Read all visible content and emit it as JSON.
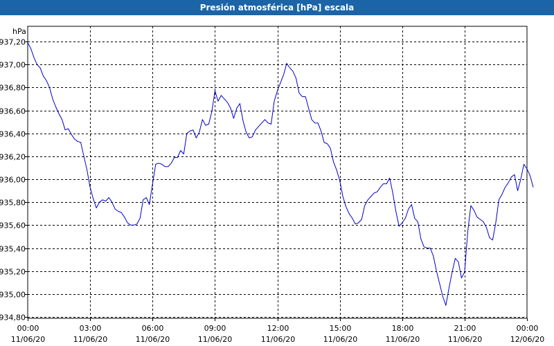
{
  "window": {
    "title": "Presión atmosférica [hPa] escala"
  },
  "chart_data": {
    "type": "line",
    "title": "Presión atmosférica [hPa] escala",
    "ylabel": "hPa",
    "xlabel": "",
    "ylim": [
      934.8,
      937.2
    ],
    "xlim": [
      0,
      24
    ],
    "grid": true,
    "y_ticks": [
      "934,80",
      "935,00",
      "935,20",
      "935,40",
      "935,60",
      "935,80",
      "936,00",
      "936,20",
      "936,40",
      "936,60",
      "936,80",
      "937,00",
      "937,20"
    ],
    "x_ticks": [
      {
        "time": "00:00",
        "date": "11/06/20"
      },
      {
        "time": "03:00",
        "date": "11/06/20"
      },
      {
        "time": "06:00",
        "date": "11/06/20"
      },
      {
        "time": "09:00",
        "date": "11/06/20"
      },
      {
        "time": "12:00",
        "date": "11/06/20"
      },
      {
        "time": "15:00",
        "date": "11/06/20"
      },
      {
        "time": "18:00",
        "date": "11/06/20"
      },
      {
        "time": "21:00",
        "date": "11/06/20"
      },
      {
        "time": "00:00",
        "date": "12/06/20"
      }
    ],
    "series": [
      {
        "color": "#0000cc",
        "points": [
          [
            0.0,
            937.19
          ],
          [
            0.15,
            937.14
          ],
          [
            0.3,
            937.06
          ],
          [
            0.45,
            937.0
          ],
          [
            0.6,
            936.97
          ],
          [
            0.75,
            936.9
          ],
          [
            0.9,
            936.86
          ],
          [
            1.05,
            936.8
          ],
          [
            1.2,
            936.7
          ],
          [
            1.35,
            936.63
          ],
          [
            1.5,
            936.57
          ],
          [
            1.65,
            936.52
          ],
          [
            1.8,
            936.43
          ],
          [
            1.95,
            936.44
          ],
          [
            2.1,
            936.39
          ],
          [
            2.25,
            936.35
          ],
          [
            2.4,
            936.33
          ],
          [
            2.55,
            936.32
          ],
          [
            2.7,
            936.2
          ],
          [
            2.85,
            936.08
          ],
          [
            3.0,
            935.93
          ],
          [
            3.15,
            935.83
          ],
          [
            3.3,
            935.75
          ],
          [
            3.45,
            935.8
          ],
          [
            3.6,
            935.82
          ],
          [
            3.75,
            935.81
          ],
          [
            3.9,
            935.84
          ],
          [
            4.05,
            935.8
          ],
          [
            4.2,
            935.74
          ],
          [
            4.35,
            935.72
          ],
          [
            4.5,
            935.71
          ],
          [
            4.65,
            935.67
          ],
          [
            4.8,
            935.62
          ],
          [
            4.95,
            935.6
          ],
          [
            5.1,
            935.6
          ],
          [
            5.25,
            935.61
          ],
          [
            5.4,
            935.66
          ],
          [
            5.55,
            935.82
          ],
          [
            5.7,
            935.84
          ],
          [
            5.85,
            935.78
          ],
          [
            6.0,
            935.96
          ],
          [
            6.15,
            936.13
          ],
          [
            6.3,
            936.14
          ],
          [
            6.45,
            936.13
          ],
          [
            6.6,
            936.11
          ],
          [
            6.75,
            936.11
          ],
          [
            6.9,
            936.14
          ],
          [
            7.05,
            936.19
          ],
          [
            7.2,
            936.19
          ],
          [
            7.35,
            936.25
          ],
          [
            7.5,
            936.22
          ],
          [
            7.65,
            936.4
          ],
          [
            7.8,
            936.42
          ],
          [
            7.95,
            936.43
          ],
          [
            8.1,
            936.36
          ],
          [
            8.25,
            936.41
          ],
          [
            8.4,
            936.52
          ],
          [
            8.55,
            936.47
          ],
          [
            8.7,
            936.48
          ],
          [
            8.85,
            936.59
          ],
          [
            9.0,
            936.77
          ],
          [
            9.15,
            936.68
          ],
          [
            9.3,
            936.73
          ],
          [
            9.45,
            936.7
          ],
          [
            9.6,
            936.67
          ],
          [
            9.75,
            936.62
          ],
          [
            9.9,
            936.53
          ],
          [
            10.05,
            936.62
          ],
          [
            10.2,
            936.66
          ],
          [
            10.35,
            936.51
          ],
          [
            10.5,
            936.41
          ],
          [
            10.65,
            936.36
          ],
          [
            10.8,
            936.37
          ],
          [
            10.95,
            936.43
          ],
          [
            11.1,
            936.46
          ],
          [
            11.25,
            936.49
          ],
          [
            11.4,
            936.52
          ],
          [
            11.55,
            936.49
          ],
          [
            11.7,
            936.48
          ],
          [
            11.85,
            936.68
          ],
          [
            12.0,
            936.77
          ],
          [
            12.15,
            936.84
          ],
          [
            12.3,
            936.91
          ],
          [
            12.45,
            937.01
          ],
          [
            12.6,
            936.97
          ],
          [
            12.75,
            936.94
          ],
          [
            12.9,
            936.88
          ],
          [
            13.05,
            936.75
          ],
          [
            13.2,
            936.72
          ],
          [
            13.35,
            936.72
          ],
          [
            13.5,
            936.62
          ],
          [
            13.65,
            936.52
          ],
          [
            13.8,
            936.49
          ],
          [
            13.95,
            936.49
          ],
          [
            14.1,
            936.42
          ],
          [
            14.25,
            936.32
          ],
          [
            14.4,
            936.31
          ],
          [
            14.55,
            936.27
          ],
          [
            14.7,
            936.15
          ],
          [
            14.85,
            936.08
          ],
          [
            15.0,
            935.99
          ],
          [
            15.15,
            935.85
          ],
          [
            15.3,
            935.76
          ],
          [
            15.45,
            935.7
          ],
          [
            15.6,
            935.66
          ],
          [
            15.75,
            935.61
          ],
          [
            15.9,
            935.62
          ],
          [
            16.05,
            935.65
          ],
          [
            16.2,
            935.77
          ],
          [
            16.35,
            935.82
          ],
          [
            16.5,
            935.85
          ],
          [
            16.65,
            935.88
          ],
          [
            16.8,
            935.89
          ],
          [
            16.95,
            935.93
          ],
          [
            17.1,
            935.96
          ],
          [
            17.25,
            935.96
          ],
          [
            17.4,
            936.01
          ],
          [
            17.55,
            935.88
          ],
          [
            17.7,
            935.72
          ],
          [
            17.85,
            935.59
          ],
          [
            18.0,
            935.62
          ],
          [
            18.15,
            935.66
          ],
          [
            18.3,
            935.74
          ],
          [
            18.45,
            935.78
          ],
          [
            18.6,
            935.66
          ],
          [
            18.75,
            935.63
          ],
          [
            18.9,
            935.48
          ],
          [
            19.05,
            935.41
          ],
          [
            19.2,
            935.4
          ],
          [
            19.35,
            935.4
          ],
          [
            19.5,
            935.33
          ],
          [
            19.65,
            935.2
          ],
          [
            19.8,
            935.09
          ],
          [
            19.95,
            934.98
          ],
          [
            20.1,
            934.9
          ],
          [
            20.25,
            935.05
          ],
          [
            20.4,
            935.19
          ],
          [
            20.55,
            935.31
          ],
          [
            20.7,
            935.28
          ],
          [
            20.85,
            935.14
          ],
          [
            21.0,
            935.19
          ],
          [
            21.15,
            935.54
          ],
          [
            21.3,
            935.77
          ],
          [
            21.45,
            935.73
          ],
          [
            21.6,
            935.67
          ],
          [
            21.75,
            935.65
          ],
          [
            21.9,
            935.63
          ],
          [
            22.05,
            935.58
          ],
          [
            22.2,
            935.49
          ],
          [
            22.35,
            935.47
          ],
          [
            22.5,
            935.62
          ],
          [
            22.65,
            935.82
          ],
          [
            22.8,
            935.87
          ],
          [
            22.95,
            935.93
          ],
          [
            23.1,
            935.97
          ],
          [
            23.25,
            936.02
          ],
          [
            23.4,
            936.04
          ],
          [
            23.55,
            935.9
          ],
          [
            23.7,
            936.0
          ],
          [
            23.85,
            936.13
          ],
          [
            24.0,
            936.09
          ],
          [
            24.15,
            936.03
          ],
          [
            24.3,
            935.93
          ]
        ]
      }
    ]
  }
}
